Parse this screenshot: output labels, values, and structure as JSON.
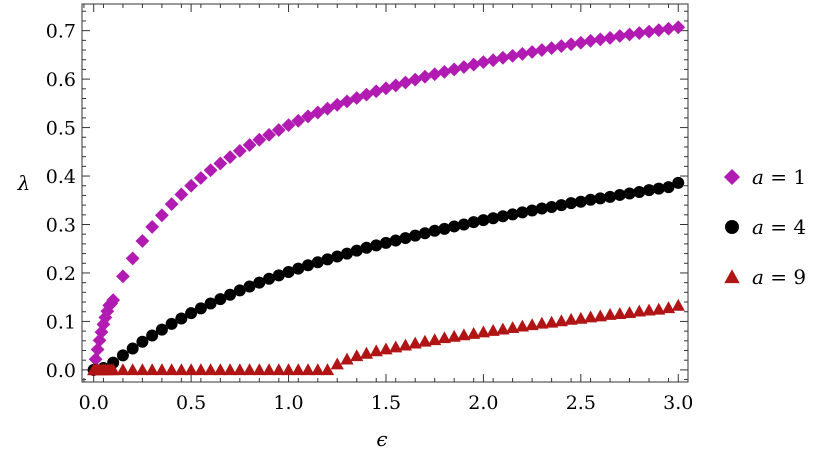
{
  "chart_data": {
    "type": "scatter",
    "xlabel": "ϵ",
    "ylabel": "λ",
    "xlim": [
      -0.06,
      3.05
    ],
    "ylim": [
      -0.025,
      0.755
    ],
    "xticks": [
      "0.0",
      "0.5",
      "1.0",
      "1.5",
      "2.0",
      "2.5",
      "3.0"
    ],
    "yticks": [
      "0.0",
      "0.1",
      "0.2",
      "0.3",
      "0.4",
      "0.5",
      "0.6",
      "0.7"
    ],
    "grid": false,
    "legend_position": "right",
    "series": [
      {
        "name": "a = 1",
        "legend_var": "a",
        "legend_eq": " = 1",
        "marker": "diamond",
        "color": "#b21bb2",
        "x": [
          0,
          0.01,
          0.02,
          0.03,
          0.04,
          0.05,
          0.06,
          0.07,
          0.08,
          0.09,
          0.1,
          0.15,
          0.2,
          0.25,
          0.3,
          0.35,
          0.4,
          0.45,
          0.5,
          0.55,
          0.6,
          0.65,
          0.7,
          0.75,
          0.8,
          0.85,
          0.9,
          0.95,
          1.0,
          1.05,
          1.1,
          1.15,
          1.2,
          1.25,
          1.3,
          1.35,
          1.4,
          1.45,
          1.5,
          1.55,
          1.6,
          1.65,
          1.7,
          1.75,
          1.8,
          1.85,
          1.9,
          1.95,
          2.0,
          2.05,
          2.1,
          2.15,
          2.2,
          2.25,
          2.3,
          2.35,
          2.4,
          2.45,
          2.5,
          2.55,
          2.6,
          2.65,
          2.7,
          2.75,
          2.8,
          2.85,
          2.9,
          2.95,
          3.0
        ],
        "y": [
          0,
          0.022,
          0.042,
          0.061,
          0.078,
          0.094,
          0.108,
          0.121,
          0.133,
          0.137,
          0.144,
          0.193,
          0.23,
          0.266,
          0.295,
          0.319,
          0.342,
          0.362,
          0.38,
          0.396,
          0.412,
          0.426,
          0.439,
          0.452,
          0.464,
          0.475,
          0.485,
          0.495,
          0.505,
          0.514,
          0.523,
          0.531,
          0.539,
          0.547,
          0.554,
          0.561,
          0.568,
          0.575,
          0.581,
          0.587,
          0.593,
          0.599,
          0.605,
          0.61,
          0.615,
          0.62,
          0.625,
          0.63,
          0.635,
          0.639,
          0.644,
          0.648,
          0.652,
          0.656,
          0.66,
          0.664,
          0.668,
          0.672,
          0.675,
          0.679,
          0.682,
          0.685,
          0.689,
          0.692,
          0.695,
          0.698,
          0.701,
          0.704,
          0.707
        ]
      },
      {
        "name": "a = 4",
        "legend_var": "a",
        "legend_eq": " = 4",
        "marker": "circle",
        "color": "#000000",
        "x": [
          0,
          0.05,
          0.1,
          0.15,
          0.2,
          0.25,
          0.3,
          0.35,
          0.4,
          0.45,
          0.5,
          0.55,
          0.6,
          0.65,
          0.7,
          0.75,
          0.8,
          0.85,
          0.9,
          0.95,
          1.0,
          1.05,
          1.1,
          1.15,
          1.2,
          1.25,
          1.3,
          1.35,
          1.4,
          1.45,
          1.5,
          1.55,
          1.6,
          1.65,
          1.7,
          1.75,
          1.8,
          1.85,
          1.9,
          1.95,
          2.0,
          2.05,
          2.1,
          2.15,
          2.2,
          2.25,
          2.3,
          2.35,
          2.4,
          2.45,
          2.5,
          2.55,
          2.6,
          2.65,
          2.7,
          2.75,
          2.8,
          2.85,
          2.9,
          2.95,
          3.0
        ],
        "y": [
          0,
          0.004,
          0.015,
          0.03,
          0.044,
          0.058,
          0.071,
          0.083,
          0.095,
          0.106,
          0.117,
          0.127,
          0.137,
          0.146,
          0.155,
          0.164,
          0.172,
          0.18,
          0.188,
          0.195,
          0.202,
          0.209,
          0.216,
          0.222,
          0.228,
          0.234,
          0.24,
          0.246,
          0.252,
          0.257,
          0.262,
          0.267,
          0.272,
          0.277,
          0.282,
          0.287,
          0.291,
          0.296,
          0.3,
          0.305,
          0.309,
          0.313,
          0.317,
          0.321,
          0.325,
          0.329,
          0.333,
          0.336,
          0.34,
          0.344,
          0.347,
          0.351,
          0.354,
          0.357,
          0.361,
          0.364,
          0.367,
          0.371,
          0.374,
          0.377,
          0.386
        ]
      },
      {
        "name": "a = 9",
        "legend_var": "a",
        "legend_eq": " = 9",
        "marker": "triangle",
        "color": "#b01414",
        "x": [
          0,
          0.01,
          0.02,
          0.03,
          0.04,
          0.05,
          0.06,
          0.07,
          0.08,
          0.09,
          0.1,
          0.15,
          0.2,
          0.25,
          0.3,
          0.35,
          0.4,
          0.45,
          0.5,
          0.55,
          0.6,
          0.65,
          0.7,
          0.75,
          0.8,
          0.85,
          0.9,
          0.95,
          1.0,
          1.05,
          1.1,
          1.15,
          1.2,
          1.25,
          1.3,
          1.35,
          1.4,
          1.45,
          1.5,
          1.55,
          1.6,
          1.65,
          1.7,
          1.75,
          1.8,
          1.85,
          1.9,
          1.95,
          2.0,
          2.05,
          2.1,
          2.15,
          2.2,
          2.25,
          2.3,
          2.35,
          2.4,
          2.45,
          2.5,
          2.55,
          2.6,
          2.65,
          2.7,
          2.75,
          2.8,
          2.85,
          2.9,
          2.95,
          3.0
        ],
        "y": [
          0,
          0,
          0,
          0,
          0,
          0,
          0,
          0,
          0,
          0,
          0,
          0,
          0,
          0,
          0,
          0,
          0,
          0,
          0,
          0,
          0,
          0,
          0,
          0,
          0,
          0,
          0,
          0,
          0,
          0,
          0,
          0,
          0,
          0.012,
          0.022,
          0.029,
          0.034,
          0.039,
          0.043,
          0.047,
          0.051,
          0.055,
          0.059,
          0.062,
          0.066,
          0.069,
          0.072,
          0.075,
          0.078,
          0.081,
          0.084,
          0.087,
          0.09,
          0.093,
          0.096,
          0.098,
          0.101,
          0.104,
          0.106,
          0.109,
          0.111,
          0.114,
          0.116,
          0.118,
          0.121,
          0.123,
          0.125,
          0.128,
          0.133
        ]
      }
    ]
  }
}
